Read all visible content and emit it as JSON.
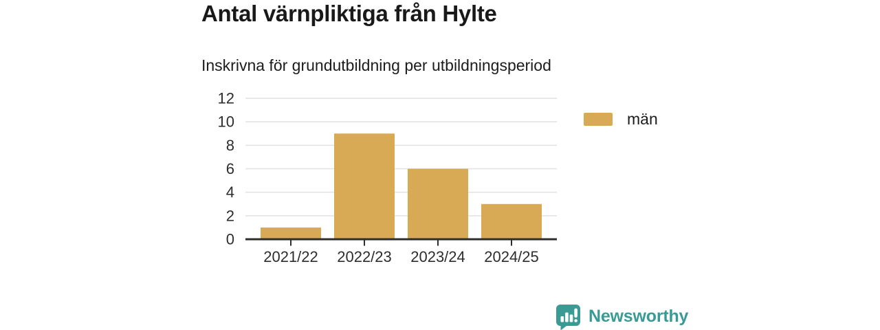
{
  "header": {
    "title": "Antal värnpliktiga från Hylte",
    "subtitle": "Inskrivna för grundutbildning per utbildningsperiod"
  },
  "chart_data": {
    "type": "bar",
    "categories": [
      "2021/22",
      "2022/23",
      "2023/24",
      "2024/25"
    ],
    "series": [
      {
        "name": "män",
        "values": [
          1,
          9,
          6,
          3
        ]
      }
    ],
    "title": "Antal värnpliktiga från Hylte",
    "subtitle": "Inskrivna för grundutbildning per utbildningsperiod",
    "xlabel": "",
    "ylabel": "",
    "ylim": [
      0,
      12
    ],
    "yticks": [
      0,
      2,
      4,
      6,
      8,
      10,
      12
    ],
    "grid": true,
    "legend_position": "right",
    "bar_color": "#d9aa55"
  },
  "legend": {
    "items": [
      {
        "label": "män",
        "color": "#d9aa55"
      }
    ]
  },
  "branding": {
    "name": "Newsworthy",
    "color": "#3a9b95"
  },
  "colors": {
    "background": "#ffffff",
    "bar": "#d9aa55",
    "grid": "#e1e1e1",
    "axis": "#2d2d2d",
    "text": "#1c1c1c",
    "brand_teal": "#3a9b95"
  }
}
